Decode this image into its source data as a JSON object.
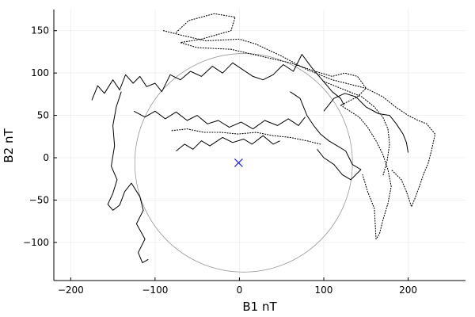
{
  "chart_data": {
    "type": "line",
    "xlabel": "B1 nT",
    "ylabel": "B2 nT",
    "xlim": [
      -220,
      268
    ],
    "ylim": [
      -145,
      175
    ],
    "xticks": [
      -200,
      -100,
      0,
      100,
      200
    ],
    "yticks": [
      -100,
      -50,
      0,
      50,
      100,
      150
    ],
    "xtick_labels": [
      "−200",
      "−100",
      "0",
      "100",
      "200"
    ],
    "ytick_labels": [
      "−100",
      "−50",
      "0",
      "50",
      "100",
      "150"
    ],
    "grid": true,
    "legend": "none",
    "colors": {
      "trace": "#000000",
      "reference_circle": "#999999",
      "marker": "#2b2bd6"
    },
    "reference_circle": {
      "center": [
        5,
        -6
      ],
      "radius": 129
    },
    "marker": {
      "symbol": "x",
      "x": -1,
      "y": -6
    },
    "series": [
      {
        "style": "solid",
        "points": [
          [
            -175,
            68
          ],
          [
            -168,
            85
          ],
          [
            -160,
            76
          ],
          [
            -150,
            92
          ],
          [
            -142,
            80
          ],
          [
            -135,
            98
          ],
          [
            -126,
            88
          ],
          [
            -118,
            96
          ],
          [
            -110,
            84
          ],
          [
            -100,
            88
          ],
          [
            -92,
            78
          ],
          [
            -82,
            98
          ],
          [
            -70,
            92
          ],
          [
            -58,
            102
          ],
          [
            -45,
            96
          ],
          [
            -32,
            108
          ],
          [
            -20,
            100
          ],
          [
            -8,
            112
          ],
          [
            4,
            104
          ],
          [
            16,
            96
          ],
          [
            28,
            92
          ],
          [
            40,
            98
          ],
          [
            52,
            110
          ],
          [
            64,
            102
          ],
          [
            74,
            122
          ],
          [
            86,
            106
          ],
          [
            98,
            92
          ],
          [
            110,
            78
          ],
          [
            120,
            70
          ],
          [
            124,
            62
          ]
        ]
      },
      {
        "style": "solid",
        "points": [
          [
            -140,
            78
          ],
          [
            -146,
            60
          ],
          [
            -150,
            38
          ],
          [
            -148,
            14
          ],
          [
            -152,
            -10
          ],
          [
            -145,
            -26
          ],
          [
            -150,
            -42
          ],
          [
            -156,
            -55
          ],
          [
            -150,
            -62
          ],
          [
            -142,
            -56
          ],
          [
            -136,
            -40
          ],
          [
            -128,
            -30
          ],
          [
            -118,
            -46
          ],
          [
            -114,
            -62
          ],
          [
            -122,
            -78
          ],
          [
            -112,
            -96
          ],
          [
            -120,
            -112
          ],
          [
            -115,
            -124
          ],
          [
            -108,
            -120
          ]
        ]
      },
      {
        "style": "solid",
        "points": [
          [
            -125,
            55
          ],
          [
            -112,
            48
          ],
          [
            -100,
            55
          ],
          [
            -88,
            46
          ],
          [
            -75,
            54
          ],
          [
            -62,
            44
          ],
          [
            -50,
            50
          ],
          [
            -38,
            40
          ],
          [
            -25,
            44
          ],
          [
            -12,
            36
          ],
          [
            2,
            42
          ],
          [
            16,
            34
          ],
          [
            30,
            44
          ],
          [
            45,
            38
          ],
          [
            58,
            46
          ],
          [
            70,
            38
          ],
          [
            78,
            48
          ]
        ]
      },
      {
        "style": "solid",
        "points": [
          [
            -75,
            8
          ],
          [
            -65,
            16
          ],
          [
            -55,
            10
          ],
          [
            -45,
            20
          ],
          [
            -35,
            14
          ],
          [
            -20,
            24
          ],
          [
            -8,
            18
          ],
          [
            5,
            22
          ],
          [
            15,
            16
          ],
          [
            28,
            26
          ],
          [
            40,
            16
          ],
          [
            48,
            20
          ]
        ]
      },
      {
        "style": "solid",
        "points": [
          [
            60,
            78
          ],
          [
            72,
            70
          ],
          [
            80,
            50
          ],
          [
            88,
            38
          ],
          [
            96,
            28
          ],
          [
            106,
            20
          ],
          [
            116,
            14
          ],
          [
            126,
            8
          ],
          [
            134,
            -8
          ],
          [
            144,
            -14
          ],
          [
            132,
            -26
          ],
          [
            122,
            -20
          ],
          [
            112,
            -8
          ],
          [
            100,
            0
          ],
          [
            92,
            10
          ]
        ]
      },
      {
        "style": "solid",
        "points": [
          [
            100,
            55
          ],
          [
            112,
            70
          ],
          [
            125,
            76
          ],
          [
            138,
            72
          ],
          [
            150,
            60
          ],
          [
            165,
            52
          ],
          [
            178,
            50
          ],
          [
            186,
            40
          ],
          [
            194,
            28
          ],
          [
            198,
            18
          ],
          [
            200,
            6
          ]
        ]
      },
      {
        "style": "dotted",
        "points": [
          [
            -75,
            148
          ],
          [
            -60,
            162
          ],
          [
            -30,
            170
          ],
          [
            -5,
            166
          ],
          [
            -10,
            150
          ],
          [
            -45,
            140
          ],
          [
            -70,
            136
          ],
          [
            -50,
            130
          ],
          [
            -10,
            128
          ],
          [
            25,
            120
          ],
          [
            60,
            112
          ],
          [
            90,
            102
          ],
          [
            110,
            96
          ],
          [
            125,
            100
          ],
          [
            140,
            96
          ],
          [
            150,
            82
          ],
          [
            140,
            72
          ],
          [
            120,
            62
          ]
        ]
      },
      {
        "style": "dotted",
        "points": [
          [
            120,
            62
          ],
          [
            142,
            48
          ],
          [
            152,
            36
          ],
          [
            162,
            20
          ],
          [
            170,
            4
          ],
          [
            176,
            -14
          ],
          [
            180,
            -34
          ],
          [
            176,
            -54
          ],
          [
            170,
            -74
          ],
          [
            166,
            -90
          ],
          [
            162,
            -96
          ],
          [
            160,
            -60
          ],
          [
            152,
            -40
          ],
          [
            146,
            -20
          ]
        ]
      },
      {
        "style": "dotted",
        "points": [
          [
            -90,
            150
          ],
          [
            -70,
            145
          ],
          [
            -40,
            138
          ],
          [
            0,
            140
          ],
          [
            20,
            134
          ],
          [
            50,
            120
          ],
          [
            80,
            104
          ],
          [
            110,
            92
          ],
          [
            150,
            82
          ],
          [
            170,
            72
          ],
          [
            185,
            60
          ],
          [
            200,
            50
          ],
          [
            212,
            44
          ],
          [
            222,
            40
          ],
          [
            232,
            28
          ],
          [
            228,
            10
          ],
          [
            224,
            -6
          ],
          [
            218,
            -20
          ],
          [
            214,
            -32
          ],
          [
            208,
            -48
          ],
          [
            204,
            -58
          ],
          [
            198,
            -40
          ],
          [
            192,
            -26
          ],
          [
            180,
            -14
          ]
        ]
      },
      {
        "style": "dotted",
        "points": [
          [
            100,
            90
          ],
          [
            125,
            80
          ],
          [
            145,
            72
          ],
          [
            160,
            60
          ],
          [
            170,
            48
          ],
          [
            176,
            34
          ],
          [
            178,
            16
          ],
          [
            175,
            -4
          ],
          [
            170,
            -22
          ]
        ]
      },
      {
        "style": "dotted",
        "points": [
          [
            -80,
            32
          ],
          [
            -62,
            34
          ],
          [
            -42,
            30
          ],
          [
            -22,
            30
          ],
          [
            -2,
            28
          ],
          [
            20,
            30
          ],
          [
            40,
            26
          ],
          [
            60,
            24
          ],
          [
            80,
            20
          ],
          [
            96,
            16
          ]
        ]
      }
    ]
  }
}
